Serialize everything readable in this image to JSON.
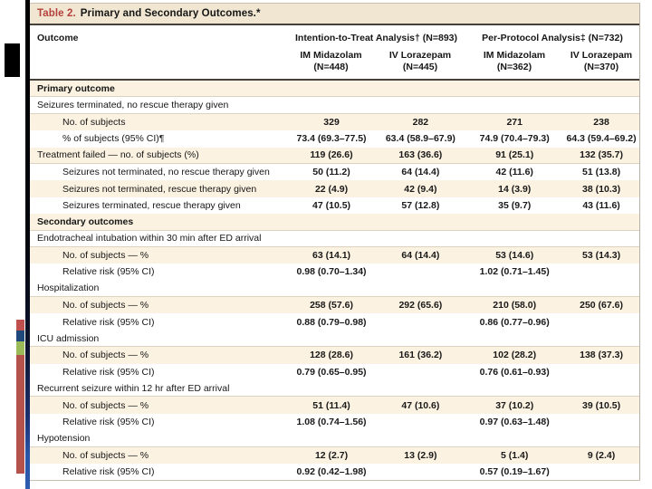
{
  "colors": {
    "table-number-red": "#b5413c",
    "row-cream": "#fbf2e1",
    "title-cream": "#f0e6d2",
    "accent-strip-blue": "#2a55a8",
    "tab-red": "#c0504d",
    "tab-blue": "#1f497d",
    "tab-green": "#9bbb59",
    "tab-maroon": "#b5524c"
  },
  "table": {
    "title_label": "Table 2.",
    "title_text": "Primary and Secondary Outcomes.*",
    "col_label_header": "Outcome",
    "groups": [
      {
        "label": "Intention-to-Treat Analysis† (N=893)",
        "cols": [
          {
            "drug": "IM Midazolam",
            "n": "(N=448)"
          },
          {
            "drug": "IV Lorazepam",
            "n": "(N=445)"
          }
        ]
      },
      {
        "label": "Per-Protocol Analysis‡ (N=732)",
        "cols": [
          {
            "drug": "IM Midazolam",
            "n": "(N=362)"
          },
          {
            "drug": "IV Lorazepam",
            "n": "(N=370)"
          }
        ]
      }
    ],
    "rows": [
      {
        "label": "Primary outcome",
        "bold": true,
        "indent": 0,
        "bg": "cream",
        "rule": true,
        "values": [
          "",
          "",
          "",
          ""
        ]
      },
      {
        "label": "Seizures terminated, no rescue therapy given",
        "indent": 0,
        "bg": "white",
        "rule": true,
        "values": [
          "",
          "",
          "",
          ""
        ]
      },
      {
        "label": "No. of subjects",
        "indent": 1,
        "bg": "cream",
        "values": [
          "329",
          "282",
          "271",
          "238"
        ]
      },
      {
        "label": "% of subjects (95% CI)¶",
        "indent": 1,
        "bg": "white",
        "values": [
          "73.4 (69.3–77.5)",
          "63.4 (58.9–67.9)",
          "74.9 (70.4–79.3)",
          "64.3 (59.4–69.2)"
        ]
      },
      {
        "label": "Treatment failed — no. of subjects (%)",
        "indent": 0,
        "bg": "cream",
        "rule": true,
        "values": [
          "119 (26.6)",
          "163 (36.6)",
          "91 (25.1)",
          "132 (35.7)"
        ]
      },
      {
        "label": "Seizures not terminated, no rescue therapy given",
        "indent": 1,
        "bg": "white",
        "values": [
          "50 (11.2)",
          "64 (14.4)",
          "42 (11.6)",
          "51 (13.8)"
        ]
      },
      {
        "label": "Seizures not terminated, rescue therapy given",
        "indent": 1,
        "bg": "cream",
        "values": [
          "22 (4.9)",
          "42 (9.4)",
          "14 (3.9)",
          "38 (10.3)"
        ]
      },
      {
        "label": "Seizures terminated, rescue therapy given",
        "indent": 1,
        "bg": "white",
        "values": [
          "47 (10.5)",
          "57 (12.8)",
          "35 (9.7)",
          "43 (11.6)"
        ]
      },
      {
        "label": "Secondary outcomes",
        "bold": true,
        "indent": 0,
        "bg": "cream",
        "rule": true,
        "values": [
          "",
          "",
          "",
          ""
        ]
      },
      {
        "label": "Endotracheal intubation within 30 min after ED arrival",
        "indent": 0,
        "bg": "white",
        "rule": true,
        "values": [
          "",
          "",
          "",
          ""
        ]
      },
      {
        "label": "No. of subjects — %",
        "indent": 1,
        "bg": "cream",
        "values": [
          "63 (14.1)",
          "64 (14.4)",
          "53 (14.6)",
          "53 (14.3)"
        ]
      },
      {
        "label": "Relative risk (95% CI)",
        "indent": 1,
        "bg": "white",
        "values": [
          "0.98 (0.70–1.34)",
          "",
          "1.02 (0.71–1.45)",
          ""
        ]
      },
      {
        "label": "Hospitalization",
        "indent": 0,
        "bg": "white",
        "rule": true,
        "values": [
          "",
          "",
          "",
          ""
        ]
      },
      {
        "label": "No. of subjects — %",
        "indent": 1,
        "bg": "cream",
        "values": [
          "258 (57.6)",
          "292 (65.6)",
          "210 (58.0)",
          "250 (67.6)"
        ]
      },
      {
        "label": "Relative risk (95% CI)",
        "indent": 1,
        "bg": "white",
        "values": [
          "0.88 (0.79–0.98)",
          "",
          "0.86 (0.77–0.96)",
          ""
        ]
      },
      {
        "label": "ICU admission",
        "indent": 0,
        "bg": "white",
        "rule": true,
        "values": [
          "",
          "",
          "",
          ""
        ]
      },
      {
        "label": "No. of subjects — %",
        "indent": 1,
        "bg": "cream",
        "values": [
          "128 (28.6)",
          "161 (36.2)",
          "102 (28.2)",
          "138 (37.3)"
        ]
      },
      {
        "label": "Relative risk (95% CI)",
        "indent": 1,
        "bg": "white",
        "values": [
          "0.79 (0.65–0.95)",
          "",
          "0.76 (0.61–0.93)",
          ""
        ]
      },
      {
        "label": "Recurrent seizure within 12 hr after ED arrival",
        "indent": 0,
        "bg": "white",
        "rule": true,
        "values": [
          "",
          "",
          "",
          ""
        ]
      },
      {
        "label": "No. of subjects — %",
        "indent": 1,
        "bg": "cream",
        "values": [
          "51 (11.4)",
          "47 (10.6)",
          "37 (10.2)",
          "39 (10.5)"
        ]
      },
      {
        "label": "Relative risk (95% CI)",
        "indent": 1,
        "bg": "white",
        "values": [
          "1.08 (0.74–1.56)",
          "",
          "0.97 (0.63–1.48)",
          ""
        ]
      },
      {
        "label": "Hypotension",
        "indent": 0,
        "bg": "white",
        "rule": true,
        "values": [
          "",
          "",
          "",
          ""
        ]
      },
      {
        "label": "No. of subjects — %",
        "indent": 1,
        "bg": "cream",
        "values": [
          "12 (2.7)",
          "13 (2.9)",
          "5 (1.4)",
          "9 (2.4)"
        ]
      },
      {
        "label": "Relative risk (95% CI)",
        "indent": 1,
        "bg": "white",
        "values": [
          "0.92 (0.42–1.98)",
          "",
          "0.57 (0.19–1.67)",
          ""
        ]
      }
    ]
  }
}
